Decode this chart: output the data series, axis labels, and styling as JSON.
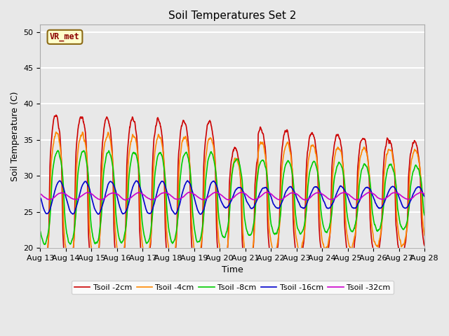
{
  "title": "Soil Temperatures Set 2",
  "xlabel": "Time",
  "ylabel": "Soil Temperature (C)",
  "ylim": [
    20,
    51
  ],
  "background_color": "#e8e8e8",
  "plot_bg_color": "#e8e8e8",
  "grid_color": "white",
  "annotation_text": "VR_met",
  "annotation_box_color": "#ffffcc",
  "annotation_border_color": "#8b6914",
  "legend_entries": [
    "Tsoil -2cm",
    "Tsoil -4cm",
    "Tsoil -8cm",
    "Tsoil -16cm",
    "Tsoil -32cm"
  ],
  "line_colors": [
    "#cc0000",
    "#ff8800",
    "#00cc00",
    "#0000cc",
    "#cc00cc"
  ],
  "line_widths": [
    1.2,
    1.2,
    1.2,
    1.2,
    1.2
  ],
  "tick_labels": [
    "Aug 13",
    "Aug 14",
    "Aug 15",
    "Aug 16",
    "Aug 17",
    "Aug 18",
    "Aug 19",
    "Aug 20",
    "Aug 21",
    "Aug 22",
    "Aug 23",
    "Aug 24",
    "Aug 25",
    "Aug 26",
    "Aug 27",
    "Aug 28"
  ],
  "yticks": [
    20,
    25,
    30,
    35,
    40,
    45,
    50
  ]
}
